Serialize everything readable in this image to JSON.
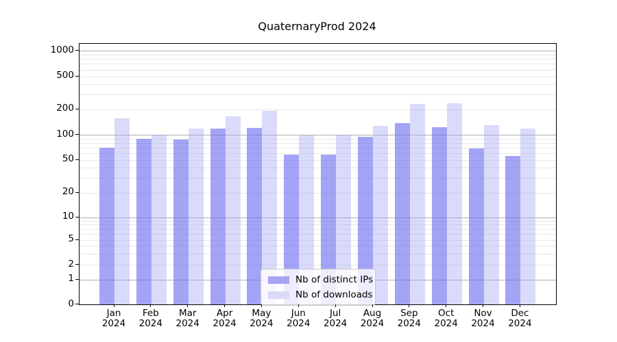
{
  "chart_data": {
    "type": "bar",
    "title": "QuaternaryProd 2024",
    "yscale": "symlog",
    "grid": true,
    "legend_position": "bottom-center",
    "categories": [
      "Jan",
      "Feb",
      "Mar",
      "Apr",
      "May",
      "Jun",
      "Jul",
      "Aug",
      "Sep",
      "Oct",
      "Nov",
      "Dec"
    ],
    "category_year": "2024",
    "yticks": [
      0,
      1,
      2,
      5,
      10,
      20,
      50,
      100,
      200,
      500,
      1000
    ],
    "ylim": [
      0,
      1300
    ],
    "colors": {
      "bar_distinct_ips_fill": "rgba(108,108,240,0.62)",
      "bar_downloads_fill": "rgba(158,158,242,0.38)",
      "legend_swatch_distinct_ips": "#a5a5f3",
      "legend_swatch_downloads": "#dadaf9",
      "grid_major": "#b0b0b0",
      "grid_minor": "#e7e7e7"
    },
    "series": [
      {
        "name": "Nb of distinct IPs",
        "values": [
          70,
          90,
          87,
          118,
          121,
          58,
          58,
          95,
          137,
          122,
          68,
          56
        ]
      },
      {
        "name": "Nb of downloads",
        "values": [
          157,
          101,
          118,
          164,
          191,
          99,
          100,
          127,
          232,
          234,
          130,
          119
        ]
      }
    ]
  }
}
